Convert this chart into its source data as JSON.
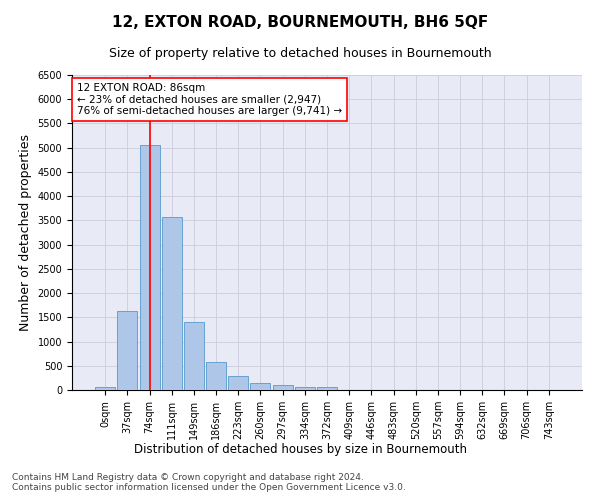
{
  "title": "12, EXTON ROAD, BOURNEMOUTH, BH6 5QF",
  "subtitle": "Size of property relative to detached houses in Bournemouth",
  "xlabel": "Distribution of detached houses by size in Bournemouth",
  "ylabel": "Number of detached properties",
  "footer_line1": "Contains HM Land Registry data © Crown copyright and database right 2024.",
  "footer_line2": "Contains public sector information licensed under the Open Government Licence v3.0.",
  "bar_labels": [
    "0sqm",
    "37sqm",
    "74sqm",
    "111sqm",
    "149sqm",
    "186sqm",
    "223sqm",
    "260sqm",
    "297sqm",
    "334sqm",
    "372sqm",
    "409sqm",
    "446sqm",
    "483sqm",
    "520sqm",
    "557sqm",
    "594sqm",
    "632sqm",
    "669sqm",
    "706sqm",
    "743sqm"
  ],
  "bar_heights": [
    70,
    1620,
    5060,
    3580,
    1400,
    580,
    290,
    140,
    100,
    70,
    60,
    0,
    0,
    0,
    0,
    0,
    0,
    0,
    0,
    0,
    0
  ],
  "bar_color": "#aec6e8",
  "bar_edge_color": "#5599cc",
  "vline_x": 2.0,
  "vline_color": "red",
  "annotation_text": "12 EXTON ROAD: 86sqm\n← 23% of detached houses are smaller (2,947)\n76% of semi-detached houses are larger (9,741) →",
  "annotation_box_color": "white",
  "annotation_box_edge_color": "red",
  "ylim": [
    0,
    6500
  ],
  "yticks": [
    0,
    500,
    1000,
    1500,
    2000,
    2500,
    3000,
    3500,
    4000,
    4500,
    5000,
    5500,
    6000,
    6500
  ],
  "grid_color": "#ccccdd",
  "background_color": "#e8eaf6",
  "title_fontsize": 11,
  "subtitle_fontsize": 9,
  "annotation_fontsize": 7.5,
  "axis_label_fontsize": 8.5,
  "ylabel_fontsize": 9,
  "tick_fontsize": 7,
  "footer_fontsize": 6.5
}
